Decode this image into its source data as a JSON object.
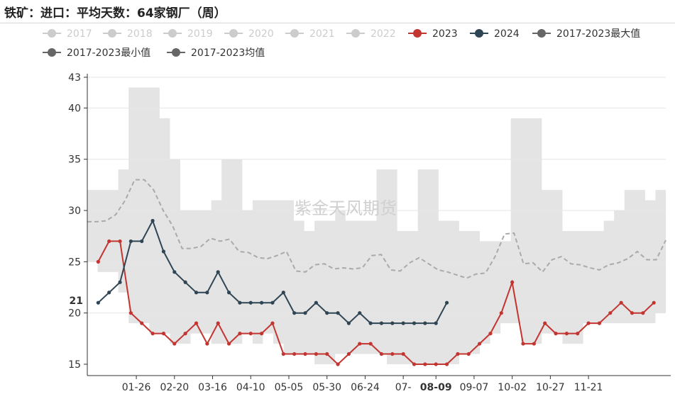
{
  "title": "铁矿：进口：平均天数：64家钢厂（周）",
  "watermark": "紫金天风期货",
  "colors": {
    "band": "#e4e4e4",
    "legend_inactive": "#cccccc",
    "s2023": "#c23531",
    "s2024": "#2f4554",
    "avg": "#aaaaaa",
    "minmax": "#666666",
    "axis": "#333333",
    "grid": "#e6e6e6"
  },
  "chart_data": {
    "type": "line",
    "y_axis": {
      "min": 15,
      "max": 43,
      "ticks": [
        15,
        20,
        25,
        30,
        35,
        40,
        43
      ]
    },
    "x_tick_labels": [
      "01-26",
      "02-20",
      "03-16",
      "04-10",
      "05-05",
      "05-30",
      "06-24",
      "07-",
      "08-09",
      "09-07",
      "10-02",
      "10-27",
      "11-21"
    ],
    "x_tick_weeks": [
      4.5,
      8,
      11.5,
      15,
      18.5,
      22,
      25.5,
      29,
      32,
      35.5,
      39,
      42.5,
      46
    ],
    "y_pointer": {
      "value": 21,
      "label": "21"
    },
    "x_pointer": {
      "label": "08-09",
      "week": 32
    },
    "legend": [
      {
        "name": "2017",
        "active": false
      },
      {
        "name": "2018",
        "active": false
      },
      {
        "name": "2019",
        "active": false
      },
      {
        "name": "2020",
        "active": false
      },
      {
        "name": "2021",
        "active": false
      },
      {
        "name": "2022",
        "active": false
      },
      {
        "name": "2023",
        "active": true
      },
      {
        "name": "2024",
        "active": true
      },
      {
        "name": "2017-2023最大值",
        "active": true
      },
      {
        "name": "2017-2023最小值",
        "active": true
      },
      {
        "name": "2017-2023均值",
        "active": true
      }
    ],
    "weeks_total": 52,
    "series": [
      {
        "name": "2023",
        "start_week": 1,
        "values": [
          25,
          27,
          27,
          20,
          19,
          18,
          18,
          17,
          18,
          19,
          17,
          19,
          17,
          18,
          18,
          18,
          19,
          16,
          16,
          16,
          16,
          16,
          15,
          16,
          17,
          17,
          16,
          16,
          16,
          15,
          15,
          15,
          15,
          16,
          16,
          17,
          18,
          20,
          23,
          17,
          17,
          19,
          18,
          18,
          18,
          19,
          19,
          20,
          21,
          20,
          20,
          21
        ]
      },
      {
        "name": "2024",
        "start_week": 1,
        "values": [
          21,
          22,
          23,
          27,
          27,
          29,
          26,
          24,
          23,
          22,
          22,
          24,
          22,
          21,
          21,
          21,
          21,
          22,
          20,
          20,
          21,
          20,
          20,
          19,
          20,
          19,
          19,
          19,
          19,
          19,
          19,
          19,
          21
        ]
      },
      {
        "name": "2017-2023最大值",
        "start_week": 0,
        "values": [
          32,
          32,
          32,
          34,
          42,
          42,
          42,
          39,
          35,
          30,
          30,
          30,
          31,
          35,
          35,
          30,
          31,
          31,
          31,
          31,
          29,
          28,
          29,
          29,
          30,
          29,
          29,
          29,
          34,
          34,
          28,
          28,
          34,
          34,
          29,
          29,
          28,
          28,
          27,
          27,
          27,
          39,
          39,
          39,
          32,
          32,
          28,
          28,
          28,
          28,
          29,
          30,
          32,
          32,
          31,
          32
        ]
      },
      {
        "name": "2017-2023最小值",
        "start_week": 0,
        "values": [
          25,
          24,
          24,
          22,
          19,
          19,
          18,
          18,
          17,
          17,
          18,
          18,
          17,
          17,
          17,
          18,
          17,
          18,
          17,
          16,
          16,
          16,
          15,
          15,
          16,
          16,
          16,
          16,
          16,
          15,
          15,
          15,
          15,
          15,
          15,
          15,
          16,
          16,
          17,
          18,
          19,
          19,
          17,
          17,
          18,
          18,
          17,
          17,
          19,
          19,
          19,
          19,
          19,
          19,
          19,
          20
        ]
      },
      {
        "name": "2017-2023均值",
        "start_week": 0,
        "values": [
          28.9,
          28.9,
          29.0,
          29.6,
          31.0,
          33.0,
          33.0,
          32.0,
          30.0,
          28.5,
          26.3,
          26.3,
          26.5,
          27.3,
          27.0,
          27.2,
          26.0,
          25.9,
          25.4,
          25.3,
          25.6,
          26.0,
          24.1,
          24.0,
          24.7,
          24.8,
          24.3,
          24.4,
          24.3,
          24.4,
          25.6,
          25.7,
          24.2,
          24.1,
          24.9,
          25.4,
          24.8,
          24.2,
          24.0,
          23.7,
          23.4,
          23.8,
          23.9,
          25.5,
          27.7,
          27.8,
          24.8,
          24.9,
          24.0,
          25.2,
          25.5,
          24.8,
          24.7,
          24.4,
          24.2,
          24.7,
          24.9,
          25.3,
          26.0,
          25.2,
          25.2,
          27.1
        ]
      }
    ]
  }
}
